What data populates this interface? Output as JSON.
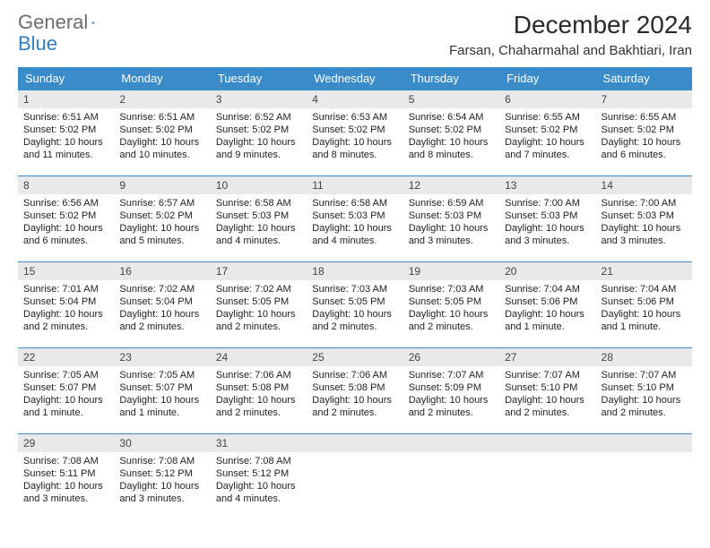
{
  "logo": {
    "text1": "General",
    "text2": "Blue"
  },
  "title": "December 2024",
  "location": "Farsan, Chaharmahal and Bakhtiari, Iran",
  "colors": {
    "header_bg": "#3a8bc9",
    "header_text": "#ffffff",
    "daynum_bg": "#e9e9e9",
    "row_border": "#3a8bc9",
    "body_text": "#222222",
    "logo_gray": "#6d6d6d",
    "logo_blue": "#2f7fc0"
  },
  "day_headers": [
    "Sunday",
    "Monday",
    "Tuesday",
    "Wednesday",
    "Thursday",
    "Friday",
    "Saturday"
  ],
  "weeks": [
    [
      {
        "n": "1",
        "sr": "Sunrise: 6:51 AM",
        "ss": "Sunset: 5:02 PM",
        "dl": "Daylight: 10 hours and 11 minutes."
      },
      {
        "n": "2",
        "sr": "Sunrise: 6:51 AM",
        "ss": "Sunset: 5:02 PM",
        "dl": "Daylight: 10 hours and 10 minutes."
      },
      {
        "n": "3",
        "sr": "Sunrise: 6:52 AM",
        "ss": "Sunset: 5:02 PM",
        "dl": "Daylight: 10 hours and 9 minutes."
      },
      {
        "n": "4",
        "sr": "Sunrise: 6:53 AM",
        "ss": "Sunset: 5:02 PM",
        "dl": "Daylight: 10 hours and 8 minutes."
      },
      {
        "n": "5",
        "sr": "Sunrise: 6:54 AM",
        "ss": "Sunset: 5:02 PM",
        "dl": "Daylight: 10 hours and 8 minutes."
      },
      {
        "n": "6",
        "sr": "Sunrise: 6:55 AM",
        "ss": "Sunset: 5:02 PM",
        "dl": "Daylight: 10 hours and 7 minutes."
      },
      {
        "n": "7",
        "sr": "Sunrise: 6:55 AM",
        "ss": "Sunset: 5:02 PM",
        "dl": "Daylight: 10 hours and 6 minutes."
      }
    ],
    [
      {
        "n": "8",
        "sr": "Sunrise: 6:56 AM",
        "ss": "Sunset: 5:02 PM",
        "dl": "Daylight: 10 hours and 6 minutes."
      },
      {
        "n": "9",
        "sr": "Sunrise: 6:57 AM",
        "ss": "Sunset: 5:02 PM",
        "dl": "Daylight: 10 hours and 5 minutes."
      },
      {
        "n": "10",
        "sr": "Sunrise: 6:58 AM",
        "ss": "Sunset: 5:03 PM",
        "dl": "Daylight: 10 hours and 4 minutes."
      },
      {
        "n": "11",
        "sr": "Sunrise: 6:58 AM",
        "ss": "Sunset: 5:03 PM",
        "dl": "Daylight: 10 hours and 4 minutes."
      },
      {
        "n": "12",
        "sr": "Sunrise: 6:59 AM",
        "ss": "Sunset: 5:03 PM",
        "dl": "Daylight: 10 hours and 3 minutes."
      },
      {
        "n": "13",
        "sr": "Sunrise: 7:00 AM",
        "ss": "Sunset: 5:03 PM",
        "dl": "Daylight: 10 hours and 3 minutes."
      },
      {
        "n": "14",
        "sr": "Sunrise: 7:00 AM",
        "ss": "Sunset: 5:03 PM",
        "dl": "Daylight: 10 hours and 3 minutes."
      }
    ],
    [
      {
        "n": "15",
        "sr": "Sunrise: 7:01 AM",
        "ss": "Sunset: 5:04 PM",
        "dl": "Daylight: 10 hours and 2 minutes."
      },
      {
        "n": "16",
        "sr": "Sunrise: 7:02 AM",
        "ss": "Sunset: 5:04 PM",
        "dl": "Daylight: 10 hours and 2 minutes."
      },
      {
        "n": "17",
        "sr": "Sunrise: 7:02 AM",
        "ss": "Sunset: 5:05 PM",
        "dl": "Daylight: 10 hours and 2 minutes."
      },
      {
        "n": "18",
        "sr": "Sunrise: 7:03 AM",
        "ss": "Sunset: 5:05 PM",
        "dl": "Daylight: 10 hours and 2 minutes."
      },
      {
        "n": "19",
        "sr": "Sunrise: 7:03 AM",
        "ss": "Sunset: 5:05 PM",
        "dl": "Daylight: 10 hours and 2 minutes."
      },
      {
        "n": "20",
        "sr": "Sunrise: 7:04 AM",
        "ss": "Sunset: 5:06 PM",
        "dl": "Daylight: 10 hours and 1 minute."
      },
      {
        "n": "21",
        "sr": "Sunrise: 7:04 AM",
        "ss": "Sunset: 5:06 PM",
        "dl": "Daylight: 10 hours and 1 minute."
      }
    ],
    [
      {
        "n": "22",
        "sr": "Sunrise: 7:05 AM",
        "ss": "Sunset: 5:07 PM",
        "dl": "Daylight: 10 hours and 1 minute."
      },
      {
        "n": "23",
        "sr": "Sunrise: 7:05 AM",
        "ss": "Sunset: 5:07 PM",
        "dl": "Daylight: 10 hours and 1 minute."
      },
      {
        "n": "24",
        "sr": "Sunrise: 7:06 AM",
        "ss": "Sunset: 5:08 PM",
        "dl": "Daylight: 10 hours and 2 minutes."
      },
      {
        "n": "25",
        "sr": "Sunrise: 7:06 AM",
        "ss": "Sunset: 5:08 PM",
        "dl": "Daylight: 10 hours and 2 minutes."
      },
      {
        "n": "26",
        "sr": "Sunrise: 7:07 AM",
        "ss": "Sunset: 5:09 PM",
        "dl": "Daylight: 10 hours and 2 minutes."
      },
      {
        "n": "27",
        "sr": "Sunrise: 7:07 AM",
        "ss": "Sunset: 5:10 PM",
        "dl": "Daylight: 10 hours and 2 minutes."
      },
      {
        "n": "28",
        "sr": "Sunrise: 7:07 AM",
        "ss": "Sunset: 5:10 PM",
        "dl": "Daylight: 10 hours and 2 minutes."
      }
    ],
    [
      {
        "n": "29",
        "sr": "Sunrise: 7:08 AM",
        "ss": "Sunset: 5:11 PM",
        "dl": "Daylight: 10 hours and 3 minutes."
      },
      {
        "n": "30",
        "sr": "Sunrise: 7:08 AM",
        "ss": "Sunset: 5:12 PM",
        "dl": "Daylight: 10 hours and 3 minutes."
      },
      {
        "n": "31",
        "sr": "Sunrise: 7:08 AM",
        "ss": "Sunset: 5:12 PM",
        "dl": "Daylight: 10 hours and 4 minutes."
      },
      null,
      null,
      null,
      null
    ]
  ]
}
